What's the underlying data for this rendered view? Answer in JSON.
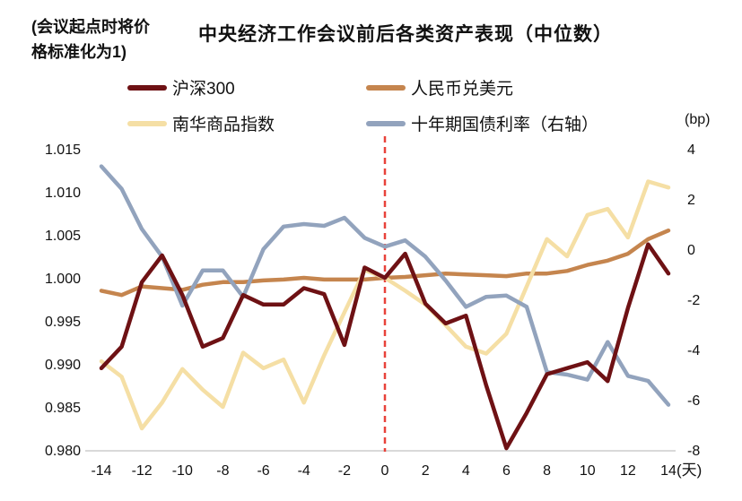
{
  "header": {
    "note_lines": [
      "(会议起点时将价",
      "格标准化为1)"
    ],
    "title": "中央经济工作会议前后各类资产表现（中位数）"
  },
  "chart_data": {
    "type": "line",
    "title": "中央经济工作会议前后各类资产表现（中位数）",
    "note": "(会议起点时将价格标准化为1)",
    "x": [
      -14,
      -13,
      -12,
      -11,
      -10,
      -9,
      -8,
      -7,
      -6,
      -5,
      -4,
      -3,
      -2,
      -1,
      0,
      1,
      2,
      3,
      4,
      5,
      6,
      7,
      8,
      9,
      10,
      11,
      12,
      13,
      14
    ],
    "x_tick_labels": [
      "-14",
      "-12",
      "-10",
      "-8",
      "-6",
      "-4",
      "-2",
      "0",
      "2",
      "4",
      "6",
      "8",
      "10",
      "12",
      "14"
    ],
    "x_unit_label": "(天)",
    "left_axis": {
      "min": 0.98,
      "max": 1.015,
      "tick_labels": [
        "1.015",
        "1.010",
        "1.005",
        "1.000",
        "0.995",
        "0.990",
        "0.985",
        "0.980"
      ]
    },
    "right_axis": {
      "unit_label": "(bp)",
      "min": -8,
      "max": 4,
      "tick_labels": [
        "4",
        "2",
        "0",
        "-2",
        "-4",
        "-6",
        "-8"
      ]
    },
    "event_line": {
      "x": 0,
      "color": "#e8423a"
    },
    "axis_line_color": "#d9d9d9",
    "grid": "off",
    "legend_position": "top",
    "series": [
      {
        "name": "沪深300",
        "axis": "left",
        "color": "#6e1114",
        "values": [
          0.9895,
          0.992,
          0.9995,
          1.0026,
          0.998,
          0.992,
          0.993,
          0.998,
          0.9969,
          0.9969,
          0.9988,
          0.9981,
          0.9922,
          1.0012,
          1.0,
          1.0028,
          0.997,
          0.9947,
          0.9956,
          0.9875,
          0.9802,
          0.9843,
          0.9888,
          0.9895,
          0.9902,
          0.988,
          0.9965,
          1.0039,
          1.0005
        ]
      },
      {
        "name": "人民币兑美元",
        "axis": "left",
        "color": "#c5854e",
        "values": [
          0.9985,
          0.998,
          0.999,
          0.9988,
          0.9986,
          0.9992,
          0.9995,
          0.9995,
          0.9997,
          0.9998,
          1.0,
          0.9998,
          0.9998,
          0.9998,
          1.0,
          1.0001,
          1.0003,
          1.0005,
          1.0004,
          1.0003,
          1.0002,
          1.0005,
          1.0005,
          1.0008,
          1.0015,
          1.002,
          1.0028,
          1.0045,
          1.0055
        ]
      },
      {
        "name": "南华商品指数",
        "axis": "left",
        "color": "#f5dfa5",
        "values": [
          0.9903,
          0.9885,
          0.9825,
          0.9855,
          0.9894,
          0.987,
          0.985,
          0.9913,
          0.9895,
          0.9905,
          0.9855,
          0.991,
          0.996,
          1.0009,
          1.0,
          0.9985,
          0.9969,
          0.9945,
          0.992,
          0.9912,
          0.9935,
          0.999,
          1.0045,
          1.0025,
          1.0073,
          1.008,
          1.0047,
          1.0112,
          1.0105
        ]
      },
      {
        "name": "十年期国债利率（右轴）",
        "axis": "right",
        "color": "#92a3bd",
        "values": [
          3.3,
          2.4,
          0.8,
          -0.3,
          -2.25,
          -0.85,
          -0.85,
          -1.9,
          0.0,
          0.9,
          1.0,
          0.93,
          1.25,
          0.45,
          0.1,
          0.35,
          -0.3,
          -1.25,
          -2.3,
          -1.9,
          -1.85,
          -2.3,
          -4.9,
          -5.0,
          -5.2,
          -3.7,
          -5.05,
          -5.25,
          -6.2
        ]
      }
    ]
  }
}
